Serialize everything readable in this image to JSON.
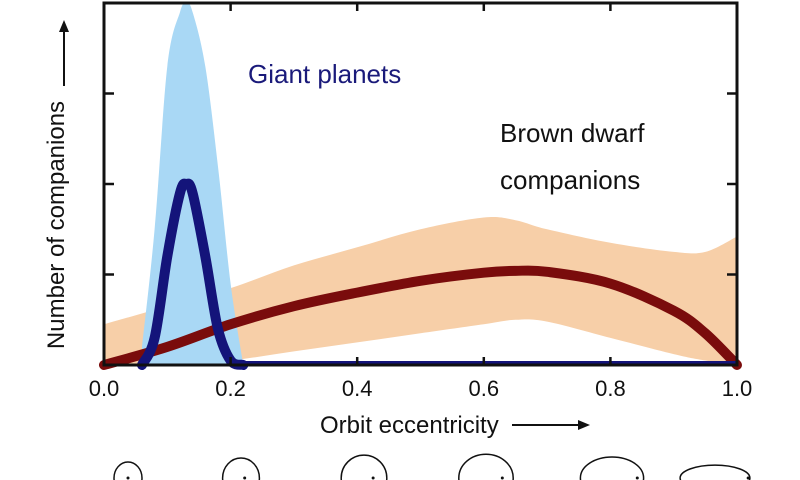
{
  "chart_data": {
    "type": "area",
    "title": "",
    "xlabel": "Orbit eccentricity",
    "ylabel": "Number of companions",
    "xlim": [
      0.0,
      1.0
    ],
    "ylim": [
      0,
      4
    ],
    "x_ticks": [
      "0.0",
      "0.2",
      "0.4",
      "0.6",
      "0.8",
      "1.0"
    ],
    "grid": false,
    "annotations": [
      {
        "text": "Giant planets",
        "color": "#1a1a7a"
      },
      {
        "text": "Brown dwarf",
        "color": "#111111"
      },
      {
        "text": "companions",
        "color": "#111111"
      }
    ],
    "series": [
      {
        "name": "Giant planets",
        "line_color": "#14147a",
        "band_color": "#a9d8f5",
        "x": [
          0.06,
          0.08,
          0.1,
          0.12,
          0.13,
          0.14,
          0.16,
          0.18,
          0.2,
          0.22
        ],
        "y": [
          0.0,
          0.3,
          1.2,
          1.9,
          2.0,
          1.9,
          1.2,
          0.4,
          0.05,
          0.0
        ],
        "band_upper": [
          0.2,
          1.5,
          3.3,
          3.9,
          4.0,
          3.9,
          3.3,
          2.2,
          0.9,
          0.0
        ]
      },
      {
        "name": "Brown dwarf companions",
        "line_color": "#7a0c0c",
        "band_color": "#f7cfa8",
        "x": [
          0.0,
          0.1,
          0.2,
          0.3,
          0.4,
          0.5,
          0.6,
          0.65,
          0.7,
          0.8,
          0.9,
          0.95,
          1.0
        ],
        "y": [
          0.0,
          0.2,
          0.45,
          0.65,
          0.8,
          0.93,
          1.02,
          1.04,
          1.03,
          0.9,
          0.6,
          0.35,
          0.0
        ],
        "band_lower": [
          0.0,
          0.0,
          0.05,
          0.15,
          0.25,
          0.35,
          0.45,
          0.5,
          0.48,
          0.3,
          0.12,
          0.05,
          0.0
        ],
        "band_upper": [
          0.45,
          0.65,
          0.85,
          1.1,
          1.3,
          1.5,
          1.63,
          1.6,
          1.5,
          1.35,
          1.25,
          1.25,
          1.42
        ]
      }
    ],
    "orbit_ellipses": [
      {
        "eccentricity": 0.0
      },
      {
        "eccentricity": 0.2
      },
      {
        "eccentricity": 0.4
      },
      {
        "eccentricity": 0.6
      },
      {
        "eccentricity": 0.8
      },
      {
        "eccentricity": 0.95
      }
    ]
  }
}
